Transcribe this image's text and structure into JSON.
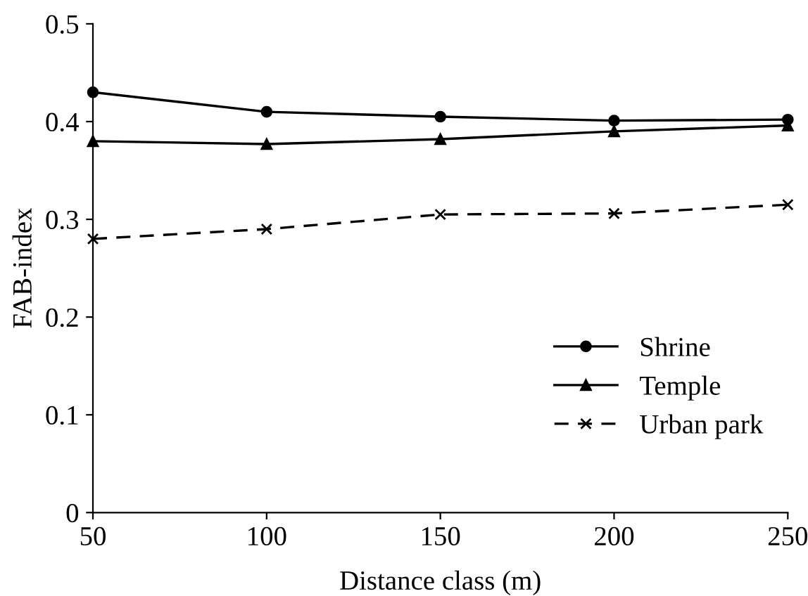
{
  "chart_data": {
    "type": "line",
    "xlabel": "Distance class (m)",
    "ylabel": "FAB-index",
    "x": [
      50,
      100,
      150,
      200,
      250
    ],
    "series": [
      {
        "name": "Shrine",
        "color": "#000000",
        "marker": "circle",
        "line_style": "solid",
        "values": [
          0.43,
          0.41,
          0.405,
          0.401,
          0.402
        ]
      },
      {
        "name": "Temple",
        "color": "#000000",
        "marker": "triangle",
        "line_style": "solid",
        "values": [
          0.38,
          0.377,
          0.382,
          0.39,
          0.396
        ]
      },
      {
        "name": "Urban park",
        "color": "#000000",
        "marker": "cross",
        "line_style": "dashed",
        "values": [
          0.28,
          0.29,
          0.305,
          0.306,
          0.315
        ]
      }
    ],
    "xlim": [
      50,
      250
    ],
    "xticks": [
      50,
      100,
      150,
      200,
      250
    ],
    "ylim": [
      0,
      0.5
    ],
    "yticks": [
      0,
      0.1,
      0.2,
      0.3,
      0.4,
      0.5
    ],
    "grid": false,
    "legend": "bottom right"
  }
}
